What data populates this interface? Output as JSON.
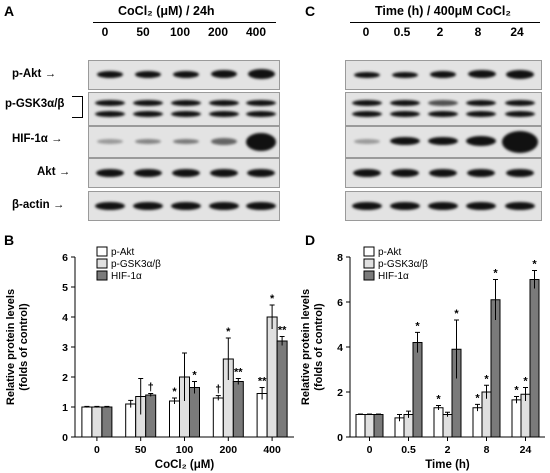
{
  "panel_letters": [
    "A",
    "C",
    "B",
    "D"
  ],
  "panel_a": {
    "condition": "CoCl₂ (μM) / 24h",
    "lanes": [
      "0",
      "50",
      "100",
      "200",
      "400"
    ]
  },
  "panel_c": {
    "condition": "Time (h) / 400μM CoCl₂",
    "lanes": [
      "0",
      "0.5",
      "2",
      "8",
      "24"
    ]
  },
  "blot_labels": [
    "p-Akt",
    "p-GSK3α/β",
    "HIF-1α",
    "Akt",
    "β-actin"
  ],
  "chart_data": [
    {
      "type": "bar",
      "panel": "B",
      "categories": [
        "0",
        "50",
        "100",
        "200",
        "400"
      ],
      "xlabel": "CoCl₂ (μM)",
      "ylabel": "Relative protein levels\n(folds of control)",
      "ylim": [
        0,
        6
      ],
      "yticks": [
        "0",
        "1",
        "2",
        "3",
        "4",
        "5",
        "6"
      ],
      "legend": "top-left",
      "series": [
        {
          "name": "p-Akt",
          "color": "#ffffff",
          "values": [
            1.0,
            1.1,
            1.2,
            1.3,
            1.45
          ],
          "err": [
            0.02,
            0.12,
            0.1,
            0.08,
            0.2
          ],
          "marks": [
            "",
            "",
            "*",
            "†",
            "**"
          ]
        },
        {
          "name": "p-GSK3α/β",
          "color": "#e0e0e0",
          "values": [
            1.0,
            1.35,
            2.0,
            2.6,
            4.0
          ],
          "err": [
            0.02,
            0.6,
            0.8,
            0.7,
            0.4
          ],
          "marks": [
            "",
            "",
            "",
            "*",
            "*"
          ]
        },
        {
          "name": "HIF-1α",
          "color": "#7a7a7a",
          "values": [
            1.0,
            1.4,
            1.65,
            1.85,
            3.2
          ],
          "err": [
            0.02,
            0.05,
            0.2,
            0.1,
            0.15
          ],
          "marks": [
            "",
            "†",
            "*",
            "**",
            "**"
          ]
        }
      ]
    },
    {
      "type": "bar",
      "panel": "D",
      "categories": [
        "0",
        "0.5",
        "2",
        "8",
        "24"
      ],
      "xlabel": "Time (h)",
      "ylabel": "Relative protein levels\n(folds of control)",
      "ylim": [
        0,
        8
      ],
      "yticks": [
        "0",
        "2",
        "4",
        "6",
        "8"
      ],
      "legend": "top-left",
      "series": [
        {
          "name": "p-Akt",
          "color": "#ffffff",
          "values": [
            1.0,
            0.85,
            1.3,
            1.3,
            1.65
          ],
          "err": [
            0.02,
            0.15,
            0.1,
            0.15,
            0.15
          ],
          "marks": [
            "",
            "",
            "*",
            "*",
            "*"
          ]
        },
        {
          "name": "p-GSK3α/β",
          "color": "#e0e0e0",
          "values": [
            1.0,
            1.0,
            1.0,
            2.0,
            1.9
          ],
          "err": [
            0.02,
            0.15,
            0.1,
            0.3,
            0.3
          ],
          "marks": [
            "",
            "",
            "",
            "*",
            "*"
          ]
        },
        {
          "name": "HIF-1α",
          "color": "#7a7a7a",
          "values": [
            1.0,
            4.2,
            3.9,
            6.1,
            7.0
          ],
          "err": [
            0.02,
            0.45,
            1.3,
            0.9,
            0.4
          ],
          "marks": [
            "",
            "*",
            "*",
            "*",
            "*"
          ]
        }
      ]
    }
  ]
}
